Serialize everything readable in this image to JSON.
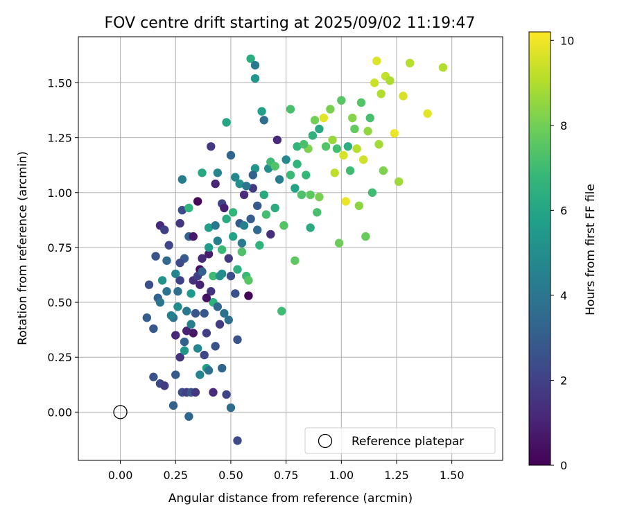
{
  "chart_data": {
    "type": "scatter",
    "title": "FOV centre drift starting at 2025/09/02 11:19:47",
    "xlabel": "Angular distance from reference (arcmin)",
    "ylabel": "Rotation from reference (arcmin)",
    "xlim": [
      -0.19,
      1.73
    ],
    "ylim": [
      -0.22,
      1.71
    ],
    "grid": true,
    "xticks": [
      0.0,
      0.25,
      0.5,
      0.75,
      1.0,
      1.25,
      1.5
    ],
    "xtick_labels": [
      "0.00",
      "0.25",
      "0.50",
      "0.75",
      "1.00",
      "1.25",
      "1.50"
    ],
    "yticks": [
      0.0,
      0.25,
      0.5,
      0.75,
      1.0,
      1.25,
      1.5
    ],
    "ytick_labels": [
      "0.00",
      "0.25",
      "0.50",
      "0.75",
      "1.00",
      "1.25",
      "1.50"
    ],
    "colorbar": {
      "label": "Hours from first FF file",
      "range": [
        0,
        10.2
      ],
      "ticks": [
        0,
        2,
        4,
        6,
        8,
        10
      ],
      "tick_labels": [
        "0",
        "2",
        "4",
        "6",
        "8",
        "10"
      ],
      "colormap": [
        "#440154",
        "#482878",
        "#3e4989",
        "#31688e",
        "#26828e",
        "#1f9e89",
        "#35b779",
        "#6ece58",
        "#b5de2b",
        "#fde725"
      ]
    },
    "reference": {
      "x": 0.0,
      "y": 0.0,
      "label": "Reference platepar"
    },
    "legend_position": "lower-right",
    "points": [
      [
        0.13,
        0.58,
        2.5
      ],
      [
        0.15,
        0.38,
        2.8
      ],
      [
        0.17,
        0.52,
        3.1
      ],
      [
        0.18,
        0.85,
        1.2
      ],
      [
        0.2,
        0.83,
        2.0
      ],
      [
        0.12,
        0.43,
        3.0
      ],
      [
        0.15,
        0.16,
        2.6
      ],
      [
        0.18,
        0.13,
        2.2
      ],
      [
        0.2,
        0.12,
        1.8
      ],
      [
        0.24,
        0.03,
        3.2
      ],
      [
        0.25,
        0.17,
        2.9
      ],
      [
        0.27,
        0.25,
        1.5
      ],
      [
        0.28,
        0.09,
        2.4
      ],
      [
        0.3,
        0.09,
        1.9
      ],
      [
        0.31,
        -0.02,
        3.4
      ],
      [
        0.32,
        0.09,
        2.7
      ],
      [
        0.34,
        0.09,
        1.6
      ],
      [
        0.36,
        0.17,
        4.6
      ],
      [
        0.39,
        0.2,
        5.8
      ],
      [
        0.42,
        0.09,
        1.3
      ],
      [
        0.46,
        0.2,
        3.3
      ],
      [
        0.48,
        0.08,
        2.1
      ],
      [
        0.5,
        0.02,
        3.6
      ],
      [
        0.53,
        -0.13,
        2.3
      ],
      [
        0.16,
        0.71,
        2.6
      ],
      [
        0.18,
        0.5,
        4.0
      ],
      [
        0.21,
        0.69,
        3.5
      ],
      [
        0.22,
        0.76,
        2.2
      ],
      [
        0.24,
        0.43,
        3.9
      ],
      [
        0.25,
        0.35,
        1.1
      ],
      [
        0.26,
        0.55,
        3.7
      ],
      [
        0.27,
        0.6,
        2.0
      ],
      [
        0.27,
        0.86,
        1.6
      ],
      [
        0.28,
        0.92,
        2.4
      ],
      [
        0.29,
        0.7,
        3.0
      ],
      [
        0.3,
        0.46,
        4.1
      ],
      [
        0.31,
        0.8,
        3.2
      ],
      [
        0.32,
        0.54,
        5.5
      ],
      [
        0.33,
        0.6,
        1.4
      ],
      [
        0.35,
        0.96,
        0.2
      ],
      [
        0.36,
        0.65,
        0.4
      ],
      [
        0.37,
        0.7,
        1.2
      ],
      [
        0.38,
        0.45,
        2.8
      ],
      [
        0.39,
        0.36,
        1.9
      ],
      [
        0.4,
        0.84,
        5.7
      ],
      [
        0.41,
        0.55,
        1.5
      ],
      [
        0.42,
        0.62,
        7.0
      ],
      [
        0.43,
        0.3,
        2.6
      ],
      [
        0.44,
        0.78,
        4.4
      ],
      [
        0.45,
        0.62,
        5.2
      ],
      [
        0.46,
        0.95,
        2.1
      ],
      [
        0.47,
        0.45,
        3.8
      ],
      [
        0.48,
        0.88,
        6.2
      ],
      [
        0.49,
        0.7,
        1.7
      ],
      [
        0.5,
        1.17,
        3.3
      ],
      [
        0.51,
        0.8,
        5.9
      ],
      [
        0.52,
        0.54,
        2.5
      ],
      [
        0.53,
        0.65,
        6.4
      ],
      [
        0.54,
        0.86,
        2.9
      ],
      [
        0.55,
        0.77,
        4.2
      ],
      [
        0.56,
        0.99,
        1.3
      ],
      [
        0.57,
        0.62,
        6.9
      ],
      [
        0.58,
        0.53,
        0.1
      ],
      [
        0.59,
        0.88,
        3.0
      ],
      [
        0.6,
        1.02,
        1.8
      ],
      [
        0.61,
        1.11,
        5.3
      ],
      [
        0.62,
        0.83,
        3.5
      ],
      [
        0.63,
        0.76,
        6.6
      ],
      [
        0.64,
        1.37,
        5.8
      ],
      [
        0.65,
        1.33,
        3.7
      ],
      [
        0.66,
        0.9,
        7.1
      ],
      [
        0.67,
        1.11,
        5.0
      ],
      [
        0.68,
        0.81,
        1.4
      ],
      [
        0.7,
        0.93,
        6.3
      ],
      [
        0.71,
        1.24,
        1.2
      ],
      [
        0.72,
        1.06,
        4.3
      ],
      [
        0.73,
        0.46,
        7.0
      ],
      [
        0.74,
        0.85,
        7.4
      ],
      [
        0.75,
        1.15,
        4.9
      ],
      [
        0.77,
        1.38,
        7.2
      ],
      [
        0.79,
        1.02,
        5.9
      ],
      [
        0.79,
        0.69,
        7.6
      ],
      [
        0.8,
        1.21,
        6.7
      ],
      [
        0.82,
        0.99,
        7.3
      ],
      [
        0.84,
        1.08,
        6.8
      ],
      [
        0.85,
        1.2,
        8.2
      ],
      [
        0.86,
        0.84,
        6.3
      ],
      [
        0.87,
        1.26,
        6.5
      ],
      [
        0.88,
        1.33,
        8.0
      ],
      [
        0.89,
        0.91,
        7.2
      ],
      [
        0.9,
        1.29,
        6.1
      ],
      [
        0.92,
        1.34,
        9.8
      ],
      [
        0.93,
        1.21,
        7.4
      ],
      [
        0.95,
        1.38,
        8.1
      ],
      [
        0.96,
        1.24,
        8.6
      ],
      [
        0.97,
        1.09,
        9.2
      ],
      [
        0.98,
        1.2,
        7.1
      ],
      [
        0.99,
        0.77,
        7.9
      ],
      [
        1.0,
        1.42,
        7.5
      ],
      [
        1.01,
        1.17,
        9.6
      ],
      [
        1.02,
        0.96,
        9.9
      ],
      [
        1.03,
        1.21,
        6.4
      ],
      [
        1.04,
        1.1,
        7.0
      ],
      [
        1.05,
        1.34,
        8.3
      ],
      [
        1.06,
        1.29,
        7.7
      ],
      [
        1.07,
        1.2,
        9.1
      ],
      [
        1.08,
        0.94,
        8.4
      ],
      [
        1.09,
        1.41,
        7.4
      ],
      [
        1.1,
        1.15,
        9.5
      ],
      [
        1.11,
        0.8,
        7.8
      ],
      [
        1.12,
        1.28,
        8.5
      ],
      [
        1.13,
        1.34,
        7.2
      ],
      [
        1.14,
        1.0,
        7.0
      ],
      [
        1.15,
        1.5,
        9.4
      ],
      [
        1.16,
        1.6,
        9.7
      ],
      [
        1.17,
        1.22,
        8.8
      ],
      [
        1.18,
        1.45,
        9.0
      ],
      [
        1.19,
        1.1,
        8.2
      ],
      [
        1.2,
        1.53,
        9.3
      ],
      [
        1.22,
        1.51,
        8.9
      ],
      [
        1.24,
        1.27,
        9.9
      ],
      [
        1.26,
        1.05,
        8.7
      ],
      [
        1.28,
        1.44,
        9.6
      ],
      [
        1.31,
        1.59,
        9.1
      ],
      [
        1.39,
        1.36,
        9.8
      ],
      [
        1.46,
        1.57,
        9.0
      ],
      [
        0.59,
        1.61,
        6.3
      ],
      [
        0.61,
        1.58,
        4.1
      ],
      [
        0.61,
        1.52,
        5.4
      ],
      [
        0.48,
        1.32,
        6.0
      ],
      [
        0.41,
        1.21,
        1.7
      ],
      [
        0.37,
        1.09,
        6.1
      ],
      [
        0.44,
        1.09,
        4.7
      ],
      [
        0.28,
        1.06,
        4.3
      ],
      [
        0.31,
        0.93,
        6.6
      ],
      [
        0.52,
        1.07,
        4.8
      ],
      [
        0.54,
        1.04,
        5.1
      ],
      [
        0.57,
        1.03,
        4.0
      ],
      [
        0.6,
        1.08,
        3.2
      ],
      [
        0.35,
        0.29,
        4.7
      ],
      [
        0.4,
        0.19,
        3.8
      ],
      [
        0.26,
        0.48,
        4.9
      ],
      [
        0.29,
        0.32,
        3.1
      ],
      [
        0.33,
        0.36,
        0.6
      ],
      [
        0.38,
        0.26,
        2.2
      ],
      [
        0.42,
        0.5,
        6.5
      ],
      [
        0.46,
        0.74,
        6.9
      ],
      [
        0.5,
        0.62,
        2.4
      ],
      [
        0.55,
        0.73,
        7.3
      ],
      [
        0.58,
        0.6,
        7.5
      ],
      [
        0.4,
        0.72,
        0.8
      ],
      [
        0.36,
        0.58,
        1.0
      ],
      [
        0.45,
        0.4,
        1.8
      ],
      [
        0.47,
        0.93,
        0.9
      ],
      [
        0.43,
        1.04,
        1.1
      ],
      [
        0.33,
        0.8,
        0.7
      ],
      [
        0.3,
        0.37,
        1.0
      ],
      [
        0.35,
        0.62,
        2.0
      ],
      [
        0.39,
        0.52,
        0.5
      ],
      [
        0.44,
        0.48,
        3.4
      ],
      [
        0.49,
        0.42,
        3.7
      ],
      [
        0.53,
        0.33,
        2.6
      ],
      [
        0.23,
        0.44,
        4.5
      ],
      [
        0.21,
        0.55,
        3.9
      ],
      [
        0.19,
        0.6,
        5.2
      ],
      [
        0.25,
        0.63,
        4.6
      ],
      [
        0.27,
        0.68,
        2.3
      ],
      [
        0.29,
        0.28,
        5.4
      ],
      [
        0.32,
        0.4,
        4.4
      ],
      [
        0.34,
        0.45,
        2.7
      ],
      [
        0.37,
        0.64,
        3.1
      ],
      [
        0.4,
        0.75,
        5.6
      ],
      [
        0.43,
        0.85,
        4.1
      ],
      [
        0.46,
        0.63,
        5.0
      ],
      [
        0.51,
        0.91,
        6.7
      ],
      [
        0.56,
        0.85,
        4.5
      ],
      [
        0.62,
        0.94,
        2.8
      ],
      [
        0.65,
        0.99,
        6.2
      ],
      [
        0.68,
        1.14,
        7.0
      ],
      [
        0.7,
        1.12,
        7.4
      ],
      [
        0.77,
        1.08,
        6.9
      ],
      [
        0.8,
        1.13,
        6.6
      ],
      [
        0.83,
        1.22,
        7.2
      ],
      [
        0.86,
        0.99,
        7.6
      ],
      [
        0.9,
        0.98,
        8.1
      ]
    ]
  }
}
